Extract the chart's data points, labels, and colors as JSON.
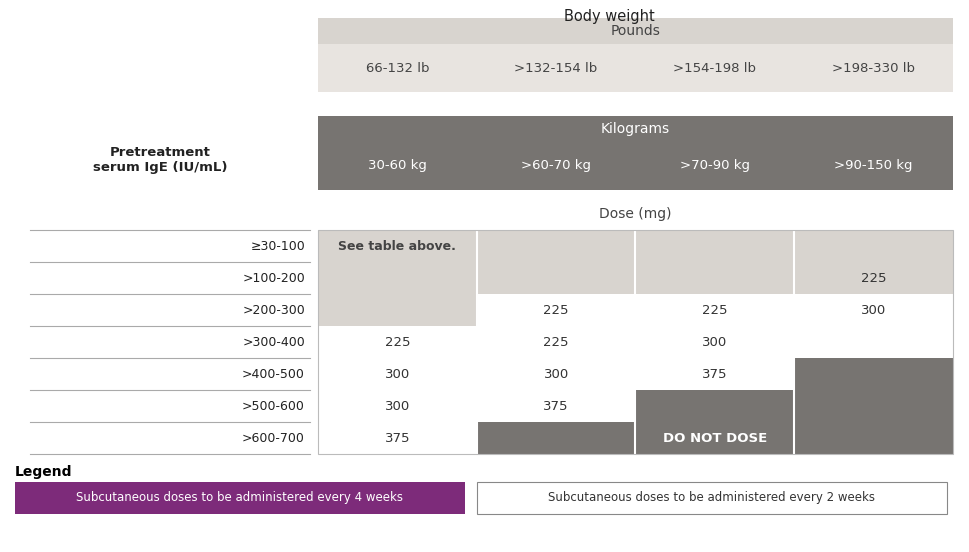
{
  "title_body_weight": "Body weight",
  "pounds_header": "Pounds",
  "pounds_cols": [
    "66-132 lb",
    ">132-154 lb",
    ">154-198 lb",
    ">198-330 lb"
  ],
  "kg_header": "Kilograms",
  "kg_cols": [
    "30-60 kg",
    ">60-70 kg",
    ">70-90 kg",
    ">90-150 kg"
  ],
  "pretreatment_label": "Pretreatment\nserum IgE (IU/mL)",
  "dose_mg_label": "Dose (mg)",
  "ige_rows": [
    "≥30-100",
    ">100-200",
    ">200-300",
    ">300-400",
    ">400-500",
    ">500-600",
    ">600-700"
  ],
  "dose_data": [
    [
      "See table above.",
      null,
      null,
      null
    ],
    [
      null,
      null,
      null,
      "225"
    ],
    [
      null,
      "225",
      "225",
      "300"
    ],
    [
      "225",
      "225",
      "300",
      null
    ],
    [
      "300",
      "300",
      "375",
      null
    ],
    [
      "300",
      "375",
      null,
      null
    ],
    [
      "375",
      null,
      null,
      null
    ]
  ],
  "do_not_dose_label": "DO NOT DOSE",
  "color_light_gray": "#d8d4cf",
  "color_dark_gray": "#777471",
  "color_header_gray": "#777471",
  "color_pounds_bg": "#e8e4e0",
  "color_white": "#ffffff",
  "color_purple": "#7d2b7a",
  "legend_4weeks": "Subcutaneous doses to be administered every 4 weeks",
  "legend_2weeks": "Subcutaneous doses to be administered every 2 weeks",
  "legend_label": "Legend"
}
